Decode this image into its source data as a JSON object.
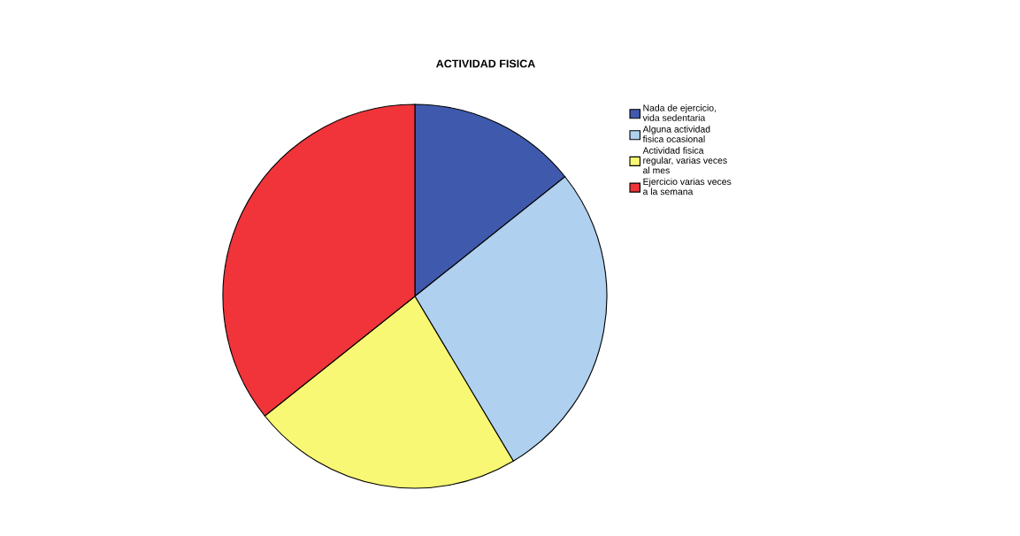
{
  "chart_data": {
    "type": "pie",
    "title": "ACTIVIDAD FISICA",
    "categories": [
      "Nada de ejercicio,\nvida sedentaria",
      "Alguna actividad\nfisica ocasional",
      "Actividad fisica\nregular, varias veces\nal mes",
      "Ejercicio varias veces\na la semana"
    ],
    "values": [
      14.29,
      27.14,
      22.86,
      35.71
    ],
    "colors": [
      "#3f5aad",
      "#afd0ee",
      "#f9f874",
      "#f0343a"
    ],
    "legend": "right"
  }
}
